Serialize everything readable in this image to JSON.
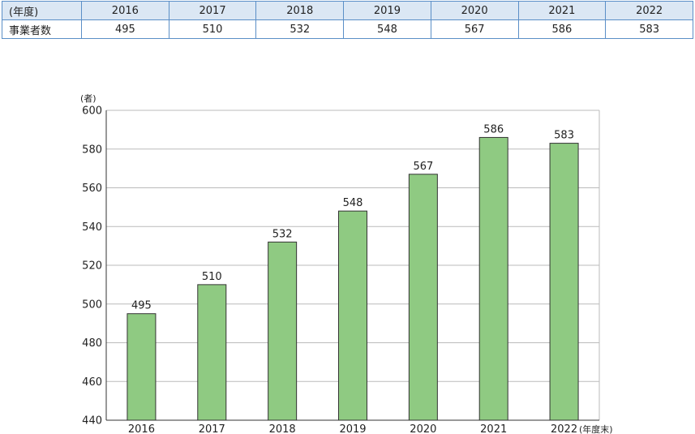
{
  "table": {
    "header_label": "(年度)",
    "row_label": "事業者数",
    "years": [
      "2016",
      "2017",
      "2018",
      "2019",
      "2020",
      "2021",
      "2022"
    ],
    "values": [
      "495",
      "510",
      "532",
      "548",
      "567",
      "586",
      "583"
    ]
  },
  "chart_data": {
    "type": "bar",
    "categories": [
      "2016",
      "2017",
      "2018",
      "2019",
      "2020",
      "2021",
      "2022"
    ],
    "values": [
      495,
      510,
      532,
      548,
      567,
      586,
      583
    ],
    "title": "",
    "xlabel": "(年度末)",
    "ylabel": "(者)",
    "ylim": [
      440,
      600
    ],
    "yticks": [
      440,
      460,
      480,
      500,
      520,
      540,
      560,
      580,
      600
    ],
    "grid": true,
    "bar_color": "#8fca82",
    "bar_edge_color": "#333333",
    "grid_color": "#bbbbbb"
  }
}
